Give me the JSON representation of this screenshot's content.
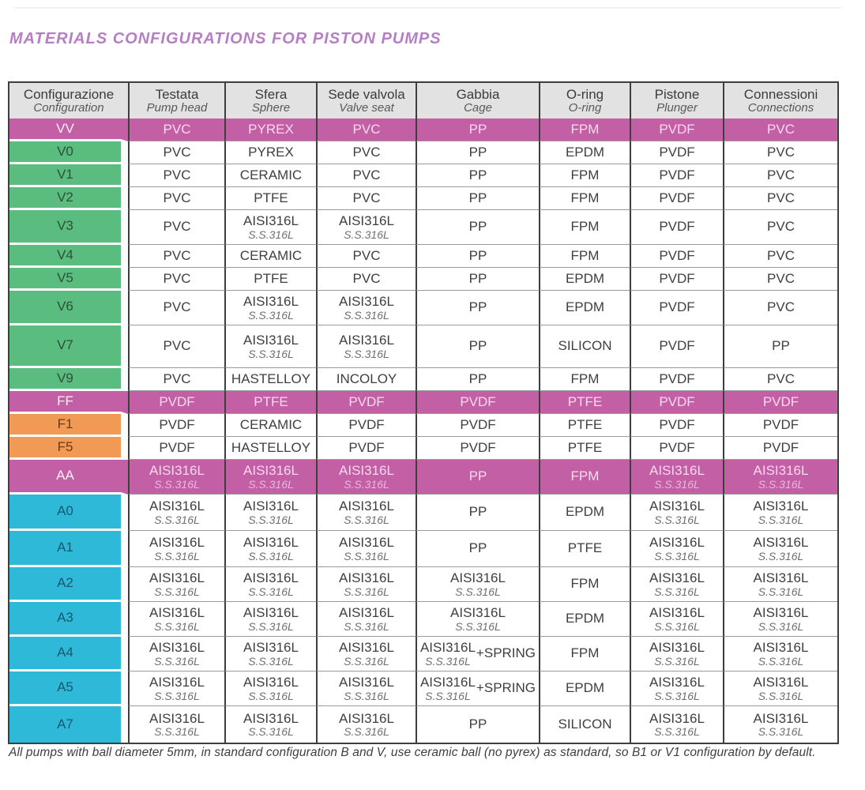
{
  "page": {
    "title": "MATERIALS CONFIGURATIONS FOR PISTON PUMPS",
    "footnote": "All pumps with ball diameter 5mm, in standard configuration B and V, use ceramic ball (no pyrex) as standard, so B1 or V1 configuration by default."
  },
  "colors": {
    "magenta": "#c35fa5",
    "green": "#5abc7e",
    "orange": "#f09a55",
    "cyan": "#2fb9d9",
    "header_bg": "#e3e2e2",
    "title": "#b67fc4"
  },
  "table": {
    "columns": [
      {
        "it": "Configurazione",
        "en": "Configuration"
      },
      {
        "it": "Testata",
        "en": "Pump head"
      },
      {
        "it": "Sfera",
        "en": "Sphere"
      },
      {
        "it": "Sede valvola",
        "en": "Valve seat"
      },
      {
        "it": "Gabbia",
        "en": "Cage"
      },
      {
        "it": "O-ring",
        "en": "O-ring"
      },
      {
        "it": "Pistone",
        "en": "Plunger"
      },
      {
        "it": "Connessioni",
        "en": "Connections"
      }
    ],
    "rows": [
      {
        "config": "VV",
        "style": "magenta",
        "cells": [
          "PVC",
          "PYREX",
          "PVC",
          "PP",
          "FPM",
          "PVDF",
          "PVC"
        ]
      },
      {
        "config": "V0",
        "style": "green",
        "cells": [
          "PVC",
          "PYREX",
          "PVC",
          "PP",
          "EPDM",
          "PVDF",
          "PVC"
        ]
      },
      {
        "config": "V1",
        "style": "green",
        "cells": [
          "PVC",
          "CERAMIC",
          "PVC",
          "PP",
          "FPM",
          "PVDF",
          "PVC"
        ]
      },
      {
        "config": "V2",
        "style": "green",
        "cells": [
          "PVC",
          "PTFE",
          "PVC",
          "PP",
          "FPM",
          "PVDF",
          "PVC"
        ]
      },
      {
        "config": "V3",
        "style": "green",
        "cells": [
          "PVC",
          {
            "main": "AISI316L",
            "sub": "S.S.316L"
          },
          {
            "main": "AISI316L",
            "sub": "S.S.316L"
          },
          "PP",
          "FPM",
          "PVDF",
          "PVC"
        ]
      },
      {
        "config": "V4",
        "style": "green",
        "cells": [
          "PVC",
          "CERAMIC",
          "PVC",
          "PP",
          "FPM",
          "PVDF",
          "PVC"
        ]
      },
      {
        "config": "V5",
        "style": "green",
        "cells": [
          "PVC",
          "PTFE",
          "PVC",
          "PP",
          "EPDM",
          "PVDF",
          "PVC"
        ]
      },
      {
        "config": "V6",
        "style": "green",
        "cells": [
          "PVC",
          {
            "main": "AISI316L",
            "sub": "S.S.316L"
          },
          {
            "main": "AISI316L",
            "sub": "S.S.316L"
          },
          "PP",
          "EPDM",
          "PVDF",
          "PVC"
        ]
      },
      {
        "config": "V7",
        "style": "green",
        "cells": [
          "PVC",
          {
            "main": "AISI316L",
            "sub": "S.S.316L"
          },
          {
            "main": "AISI316L",
            "sub": "S.S.316L"
          },
          "PP",
          "SILICON",
          "PVDF",
          "PP"
        ]
      },
      {
        "config": "V9",
        "style": "green",
        "cells": [
          "PVC",
          "HASTELLOY",
          "INCOLOY",
          "PP",
          "FPM",
          "PVDF",
          "PVC"
        ]
      },
      {
        "config": "FF",
        "style": "magenta",
        "cells": [
          "PVDF",
          "PTFE",
          "PVDF",
          "PVDF",
          "PTFE",
          "PVDF",
          "PVDF"
        ]
      },
      {
        "config": "F1",
        "style": "orange",
        "cells": [
          "PVDF",
          "CERAMIC",
          "PVDF",
          "PVDF",
          "PTFE",
          "PVDF",
          "PVDF"
        ]
      },
      {
        "config": "F5",
        "style": "orange",
        "cells": [
          "PVDF",
          "HASTELLOY",
          "PVDF",
          "PVDF",
          "PTFE",
          "PVDF",
          "PVDF"
        ]
      },
      {
        "config": "AA",
        "style": "magenta",
        "cells": [
          {
            "main": "AISI316L",
            "sub": "S.S.316L"
          },
          {
            "main": "AISI316L",
            "sub": "S.S.316L"
          },
          {
            "main": "AISI316L",
            "sub": "S.S.316L"
          },
          "PP",
          "FPM",
          {
            "main": "AISI316L",
            "sub": "S.S.316L"
          },
          {
            "main": "AISI316L",
            "sub": "S.S.316L"
          }
        ]
      },
      {
        "config": "A0",
        "style": "cyan",
        "cells": [
          {
            "main": "AISI316L",
            "sub": "S.S.316L"
          },
          {
            "main": "AISI316L",
            "sub": "S.S.316L"
          },
          {
            "main": "AISI316L",
            "sub": "S.S.316L"
          },
          "PP",
          "EPDM",
          {
            "main": "AISI316L",
            "sub": "S.S.316L"
          },
          {
            "main": "AISI316L",
            "sub": "S.S.316L"
          }
        ]
      },
      {
        "config": "A1",
        "style": "cyan",
        "cells": [
          {
            "main": "AISI316L",
            "sub": "S.S.316L"
          },
          {
            "main": "AISI316L",
            "sub": "S.S.316L"
          },
          {
            "main": "AISI316L",
            "sub": "S.S.316L"
          },
          "PP",
          "PTFE",
          {
            "main": "AISI316L",
            "sub": "S.S.316L"
          },
          {
            "main": "AISI316L",
            "sub": "S.S.316L"
          }
        ]
      },
      {
        "config": "A2",
        "style": "cyan",
        "cells": [
          {
            "main": "AISI316L",
            "sub": "S.S.316L"
          },
          {
            "main": "AISI316L",
            "sub": "S.S.316L"
          },
          {
            "main": "AISI316L",
            "sub": "S.S.316L"
          },
          {
            "main": "AISI316L",
            "sub": "S.S.316L"
          },
          "FPM",
          {
            "main": "AISI316L",
            "sub": "S.S.316L"
          },
          {
            "main": "AISI316L",
            "sub": "S.S.316L"
          }
        ]
      },
      {
        "config": "A3",
        "style": "cyan",
        "cells": [
          {
            "main": "AISI316L",
            "sub": "S.S.316L"
          },
          {
            "main": "AISI316L",
            "sub": "S.S.316L"
          },
          {
            "main": "AISI316L",
            "sub": "S.S.316L"
          },
          {
            "main": "AISI316L",
            "sub": "S.S.316L"
          },
          "EPDM",
          {
            "main": "AISI316L",
            "sub": "S.S.316L"
          },
          {
            "main": "AISI316L",
            "sub": "S.S.316L"
          }
        ]
      },
      {
        "config": "A4",
        "style": "cyan",
        "cells": [
          {
            "main": "AISI316L",
            "sub": "S.S.316L"
          },
          {
            "main": "AISI316L",
            "sub": "S.S.316L"
          },
          {
            "main": "AISI316L",
            "sub": "S.S.316L"
          },
          {
            "main": "AISI316L",
            "sub": "S.S.316L",
            "suffix": "+SPRING"
          },
          "FPM",
          {
            "main": "AISI316L",
            "sub": "S.S.316L"
          },
          {
            "main": "AISI316L",
            "sub": "S.S.316L"
          }
        ]
      },
      {
        "config": "A5",
        "style": "cyan",
        "cells": [
          {
            "main": "AISI316L",
            "sub": "S.S.316L"
          },
          {
            "main": "AISI316L",
            "sub": "S.S.316L"
          },
          {
            "main": "AISI316L",
            "sub": "S.S.316L"
          },
          {
            "main": "AISI316L",
            "sub": "S.S.316L",
            "suffix": "+SPRING"
          },
          "EPDM",
          {
            "main": "AISI316L",
            "sub": "S.S.316L"
          },
          {
            "main": "AISI316L",
            "sub": "S.S.316L"
          }
        ]
      },
      {
        "config": "A7",
        "style": "cyan",
        "cells": [
          {
            "main": "AISI316L",
            "sub": "S.S.316L"
          },
          {
            "main": "AISI316L",
            "sub": "S.S.316L"
          },
          {
            "main": "AISI316L",
            "sub": "S.S.316L"
          },
          "PP",
          "SILICON",
          {
            "main": "AISI316L",
            "sub": "S.S.316L"
          },
          {
            "main": "AISI316L",
            "sub": "S.S.316L"
          }
        ]
      }
    ]
  }
}
